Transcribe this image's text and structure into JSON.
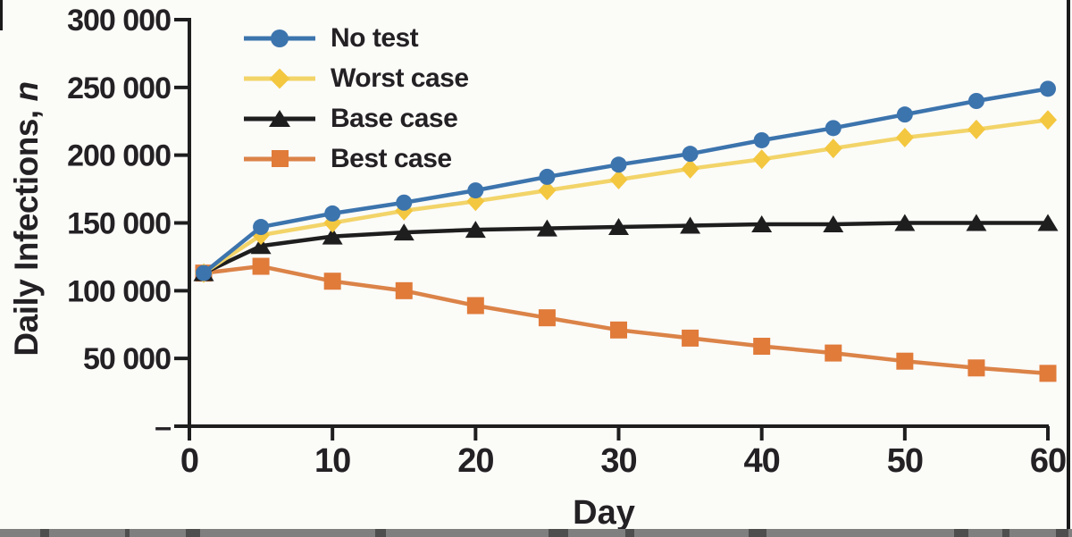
{
  "figure": {
    "background": "#fbfbf8",
    "text_color": "#242124",
    "axis_color": "#1e1e1e",
    "cropped_strip_color": "#7f7f7f"
  },
  "chart_data": {
    "type": "line",
    "title": "",
    "xlabel": "Day",
    "ylabel": "Daily Infections, n",
    "ylabel_main": "Daily Infections, ",
    "ylabel_italic": "n",
    "x_range": [
      0,
      60
    ],
    "y_range": [
      0,
      300000
    ],
    "grid": false,
    "legend_position": "top-left-inside",
    "x": [
      1,
      5,
      10,
      15,
      20,
      25,
      30,
      35,
      40,
      45,
      50,
      55,
      60
    ],
    "xticks": {
      "values": [
        0,
        10,
        20,
        30,
        40,
        50,
        60
      ],
      "labels": [
        "0",
        "10",
        "20",
        "30",
        "40",
        "50",
        "60"
      ]
    },
    "yticks": {
      "values": [
        0,
        50000,
        100000,
        150000,
        200000,
        250000,
        300000
      ],
      "labels": [
        "–",
        "50 000",
        "100 000",
        "150 000",
        "200 000",
        "250 000",
        "300 000"
      ]
    },
    "series": [
      {
        "name": "No test",
        "marker": "circle",
        "marker_color": "#3c74ad",
        "line_color": "#3c74ad",
        "values": [
          113000,
          147000,
          157000,
          165000,
          174000,
          184000,
          193000,
          201000,
          211000,
          220000,
          230000,
          240000,
          249000
        ]
      },
      {
        "name": "Worst case",
        "marker": "diamond",
        "marker_color": "#f3c73f",
        "line_color": "#f2d469",
        "values": [
          113000,
          141000,
          150000,
          159000,
          166000,
          174000,
          182000,
          190000,
          197000,
          205000,
          213000,
          219000,
          226000
        ]
      },
      {
        "name": "Base case",
        "marker": "triangle",
        "marker_color": "#1e1e1e",
        "line_color": "#1e1e1e",
        "values": [
          113000,
          133000,
          140000,
          143000,
          145000,
          146000,
          147000,
          148000,
          149000,
          149000,
          150000,
          150000,
          150000
        ]
      },
      {
        "name": "Best case",
        "marker": "square",
        "marker_color": "#e07b3a",
        "line_color": "#db8348",
        "values": [
          113000,
          118000,
          107000,
          100000,
          89000,
          80000,
          71000,
          65000,
          59000,
          54000,
          48000,
          43000,
          39000
        ]
      }
    ]
  }
}
